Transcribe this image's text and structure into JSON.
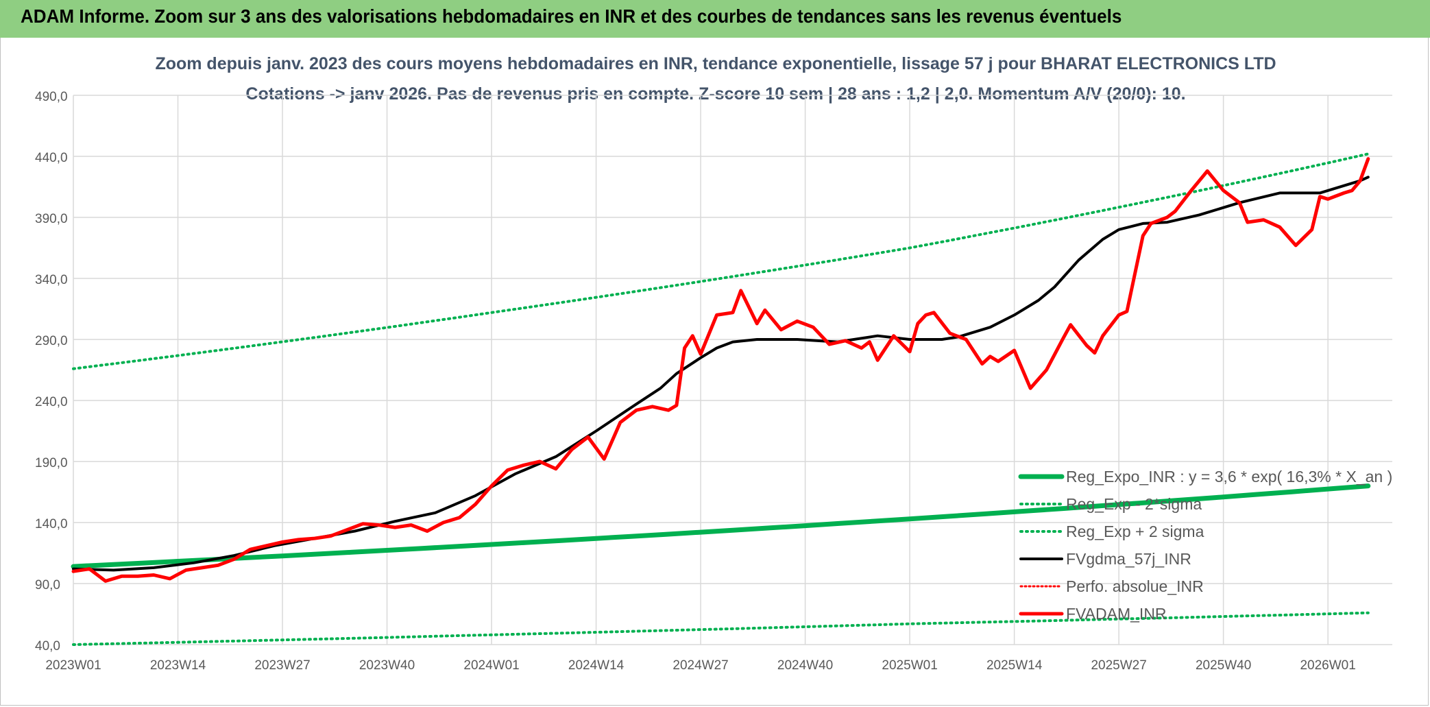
{
  "banner": {
    "title": "ADAM Informe. Zoom sur 3 ans des valorisations hebdomadaires en INR et des courbes de tendances sans les revenus éventuels"
  },
  "chart_data": {
    "type": "line",
    "title": "Zoom depuis janv. 2023 des cours moyens hebdomadaires en INR, tendance exponentielle, lissage 57 j pour BHARAT ELECTRONICS LTD",
    "subtitle": "Cotations -> janv 2026. Pas de revenus pris en compte. Z-score 10 sem | 28 ans : 1,2 | 2,0. Momentum A/V (20/0): 10.",
    "xlabel": "",
    "ylabel": "",
    "ylim": [
      40,
      490
    ],
    "yticks": [
      "490,0",
      "440,0",
      "390,0",
      "340,0",
      "290,0",
      "240,0",
      "190,0",
      "140,0",
      "90,0",
      "40,0"
    ],
    "x_range_weeks": [
      0,
      164
    ],
    "xticks": [
      {
        "label": "2023W01",
        "week": 0
      },
      {
        "label": "2023W14",
        "week": 13
      },
      {
        "label": "2023W27",
        "week": 26
      },
      {
        "label": "2023W40",
        "week": 39
      },
      {
        "label": "2024W01",
        "week": 52
      },
      {
        "label": "2024W14",
        "week": 65
      },
      {
        "label": "2024W27",
        "week": 78
      },
      {
        "label": "2024W40",
        "week": 91
      },
      {
        "label": "2025W01",
        "week": 104
      },
      {
        "label": "2025W14",
        "week": 117
      },
      {
        "label": "2025W27",
        "week": 130
      },
      {
        "label": "2025W40",
        "week": 143
      },
      {
        "label": "2026W01",
        "week": 156
      }
    ],
    "grid": true,
    "legend_position": "bottom-right",
    "colors": {
      "reg_expo": "#00b050",
      "sigma": "#00b050",
      "fvgdma": "#000000",
      "perfo": "#ff0000",
      "fvadam": "#ff0000",
      "grid": "#d9d9d9",
      "axis_text": "#595959",
      "title_text": "#44546a"
    },
    "series": [
      {
        "name": "Reg_Expo_INR : y = 3,6 * exp( 16,3% *  X_an )",
        "style": "solid-thick",
        "points": [
          [
            0,
            104
          ],
          [
            52,
            122
          ],
          [
            104,
            143
          ],
          [
            161,
            170
          ]
        ]
      },
      {
        "name": "Reg_Exp - 2*sigma",
        "style": "dotted",
        "points": [
          [
            0,
            40
          ],
          [
            52,
            48
          ],
          [
            104,
            57
          ],
          [
            161,
            66
          ]
        ]
      },
      {
        "name": "Reg_Exp + 2 sigma",
        "style": "dotted",
        "points": [
          [
            0,
            266
          ],
          [
            52,
            312
          ],
          [
            104,
            365
          ],
          [
            161,
            442
          ]
        ]
      },
      {
        "name": "FVgdma_57j_INR",
        "style": "solid",
        "points": [
          [
            0,
            102
          ],
          [
            5,
            101
          ],
          [
            10,
            103
          ],
          [
            15,
            107
          ],
          [
            20,
            113
          ],
          [
            25,
            121
          ],
          [
            30,
            127
          ],
          [
            35,
            133
          ],
          [
            40,
            141
          ],
          [
            45,
            148
          ],
          [
            50,
            162
          ],
          [
            55,
            180
          ],
          [
            60,
            194
          ],
          [
            65,
            215
          ],
          [
            70,
            237
          ],
          [
            73,
            250
          ],
          [
            75,
            262
          ],
          [
            78,
            275
          ],
          [
            80,
            283
          ],
          [
            82,
            288
          ],
          [
            85,
            290
          ],
          [
            90,
            290
          ],
          [
            95,
            288
          ],
          [
            100,
            293
          ],
          [
            104,
            290
          ],
          [
            108,
            290
          ],
          [
            110,
            292
          ],
          [
            114,
            300
          ],
          [
            117,
            310
          ],
          [
            120,
            322
          ],
          [
            122,
            333
          ],
          [
            125,
            355
          ],
          [
            128,
            372
          ],
          [
            130,
            380
          ],
          [
            133,
            385
          ],
          [
            136,
            386
          ],
          [
            140,
            392
          ],
          [
            145,
            402
          ],
          [
            150,
            410
          ],
          [
            155,
            410
          ],
          [
            160,
            420
          ],
          [
            161,
            423
          ]
        ]
      },
      {
        "name": "Perfo. absolue_INR",
        "style": "dotted",
        "points": []
      },
      {
        "name": "FVADAM_INR",
        "style": "solid-thick",
        "points": [
          [
            0,
            100
          ],
          [
            2,
            102
          ],
          [
            4,
            92
          ],
          [
            6,
            96
          ],
          [
            8,
            96
          ],
          [
            10,
            97
          ],
          [
            12,
            94
          ],
          [
            14,
            101
          ],
          [
            16,
            103
          ],
          [
            18,
            105
          ],
          [
            20,
            110
          ],
          [
            22,
            118
          ],
          [
            24,
            121
          ],
          [
            26,
            124
          ],
          [
            28,
            126
          ],
          [
            30,
            127
          ],
          [
            32,
            129
          ],
          [
            34,
            134
          ],
          [
            36,
            139
          ],
          [
            38,
            138
          ],
          [
            40,
            136
          ],
          [
            42,
            138
          ],
          [
            44,
            133
          ],
          [
            46,
            140
          ],
          [
            48,
            144
          ],
          [
            50,
            155
          ],
          [
            52,
            170
          ],
          [
            54,
            183
          ],
          [
            56,
            187
          ],
          [
            58,
            190
          ],
          [
            60,
            184
          ],
          [
            62,
            200
          ],
          [
            64,
            210
          ],
          [
            66,
            192
          ],
          [
            68,
            222
          ],
          [
            70,
            232
          ],
          [
            72,
            235
          ],
          [
            74,
            232
          ],
          [
            75,
            236
          ],
          [
            76,
            283
          ],
          [
            77,
            293
          ],
          [
            78,
            278
          ],
          [
            80,
            310
          ],
          [
            82,
            312
          ],
          [
            83,
            330
          ],
          [
            85,
            303
          ],
          [
            86,
            314
          ],
          [
            88,
            298
          ],
          [
            90,
            305
          ],
          [
            92,
            300
          ],
          [
            94,
            286
          ],
          [
            96,
            289
          ],
          [
            98,
            283
          ],
          [
            99,
            288
          ],
          [
            100,
            273
          ],
          [
            102,
            293
          ],
          [
            104,
            280
          ],
          [
            105,
            303
          ],
          [
            106,
            310
          ],
          [
            107,
            312
          ],
          [
            109,
            295
          ],
          [
            111,
            290
          ],
          [
            113,
            270
          ],
          [
            114,
            276
          ],
          [
            115,
            272
          ],
          [
            117,
            281
          ],
          [
            119,
            250
          ],
          [
            121,
            265
          ],
          [
            123,
            290
          ],
          [
            124,
            302
          ],
          [
            126,
            285
          ],
          [
            127,
            279
          ],
          [
            128,
            293
          ],
          [
            130,
            310
          ],
          [
            131,
            313
          ],
          [
            133,
            375
          ],
          [
            134,
            385
          ],
          [
            136,
            390
          ],
          [
            137,
            395
          ],
          [
            139,
            412
          ],
          [
            141,
            428
          ],
          [
            143,
            412
          ],
          [
            145,
            402
          ],
          [
            146,
            386
          ],
          [
            148,
            388
          ],
          [
            150,
            382
          ],
          [
            152,
            367
          ],
          [
            154,
            380
          ],
          [
            155,
            407
          ],
          [
            156,
            405
          ],
          [
            158,
            410
          ],
          [
            159,
            412
          ],
          [
            160,
            420
          ],
          [
            161,
            438
          ]
        ]
      }
    ]
  }
}
